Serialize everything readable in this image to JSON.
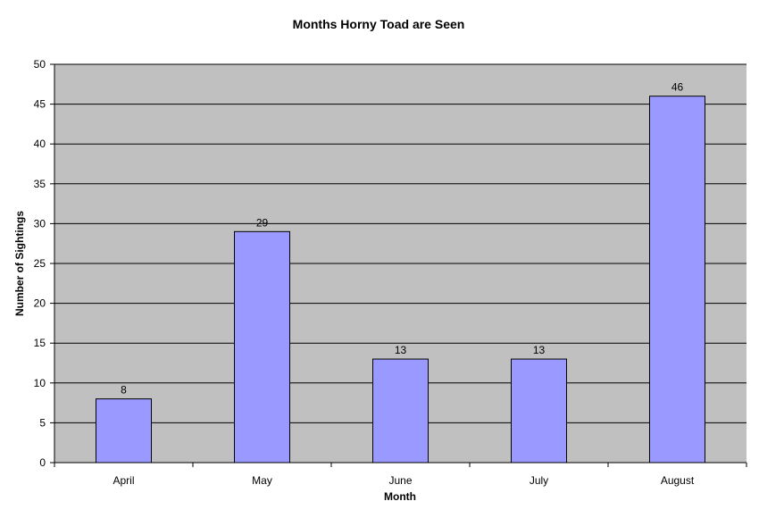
{
  "chart_data": {
    "type": "bar",
    "title": "Months Horny Toad are Seen",
    "xlabel": "Month",
    "ylabel": "Number of Sightings",
    "categories": [
      "April",
      "May",
      "June",
      "July",
      "August"
    ],
    "values": [
      8,
      29,
      13,
      13,
      46
    ],
    "ylim": [
      0,
      50
    ],
    "yticks": [
      0,
      5,
      10,
      15,
      20,
      25,
      30,
      35,
      40,
      45,
      50
    ],
    "grid": true,
    "legend": "none",
    "colors": {
      "bar_fill": "#9999ff",
      "bar_stroke": "#000000",
      "plot_background": "#c0c0c0",
      "grid": "#000000"
    }
  }
}
